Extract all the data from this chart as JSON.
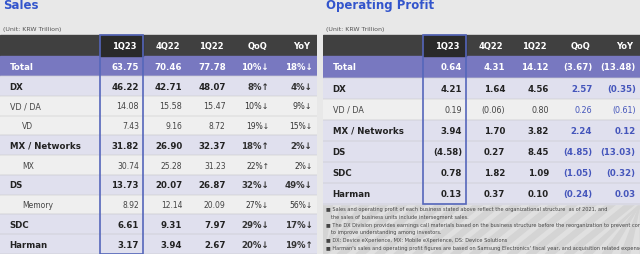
{
  "sales_title": "Sales",
  "op_title": "Operating Profit",
  "unit_label": "(Unit: KRW Trillion)",
  "columns": [
    "1Q23",
    "4Q22",
    "1Q22",
    "QoQ",
    "YoY"
  ],
  "sales_rows": [
    {
      "label": "Total",
      "vals": [
        "63.75",
        "70.46",
        "77.78",
        "10%↓",
        "18%↓"
      ],
      "bold": true,
      "header": true,
      "indent": false
    },
    {
      "label": "DX",
      "vals": [
        "46.22",
        "42.71",
        "48.07",
        "8%↑",
        "4%↓"
      ],
      "bold": true,
      "header": false,
      "indent": false
    },
    {
      "label": "VD / DA",
      "vals": [
        "14.08",
        "15.58",
        "15.47",
        "10%↓",
        "9%↓"
      ],
      "bold": false,
      "header": false,
      "indent": false
    },
    {
      "label": "VD",
      "vals": [
        "7.43",
        "9.16",
        "8.72",
        "19%↓",
        "15%↓"
      ],
      "bold": false,
      "header": false,
      "indent": true
    },
    {
      "label": "MX / Networks",
      "vals": [
        "31.82",
        "26.90",
        "32.37",
        "18%↑",
        "2%↓"
      ],
      "bold": true,
      "header": false,
      "indent": false
    },
    {
      "label": "MX",
      "vals": [
        "30.74",
        "25.28",
        "31.23",
        "22%↑",
        "2%↓"
      ],
      "bold": false,
      "header": false,
      "indent": true
    },
    {
      "label": "DS",
      "vals": [
        "13.73",
        "20.07",
        "26.87",
        "32%↓",
        "49%↓"
      ],
      "bold": true,
      "header": false,
      "indent": false
    },
    {
      "label": "Memory",
      "vals": [
        "8.92",
        "12.14",
        "20.09",
        "27%↓",
        "56%↓"
      ],
      "bold": false,
      "header": false,
      "indent": true
    },
    {
      "label": "SDC",
      "vals": [
        "6.61",
        "9.31",
        "7.97",
        "29%↓",
        "17%↓"
      ],
      "bold": true,
      "header": false,
      "indent": false
    },
    {
      "label": "Harman",
      "vals": [
        "3.17",
        "3.94",
        "2.67",
        "20%↓",
        "19%↑"
      ],
      "bold": true,
      "header": false,
      "indent": false
    }
  ],
  "op_rows": [
    {
      "label": "Total",
      "vals": [
        "0.64",
        "4.31",
        "14.12",
        "(3.67)",
        "(13.48)"
      ],
      "bold": true,
      "header": true,
      "indent": false
    },
    {
      "label": "DX",
      "vals": [
        "4.21",
        "1.64",
        "4.56",
        "2.57",
        "(0.35)"
      ],
      "bold": true,
      "header": false,
      "indent": false
    },
    {
      "label": "VD / DA",
      "vals": [
        "0.19",
        "(0.06)",
        "0.80",
        "0.26",
        "(0.61)"
      ],
      "bold": false,
      "header": false,
      "indent": false
    },
    {
      "label": "MX / Networks",
      "vals": [
        "3.94",
        "1.70",
        "3.82",
        "2.24",
        "0.12"
      ],
      "bold": true,
      "header": false,
      "indent": false
    },
    {
      "label": "DS",
      "vals": [
        "(4.58)",
        "0.27",
        "8.45",
        "(4.85)",
        "(13.03)"
      ],
      "bold": true,
      "header": false,
      "indent": false
    },
    {
      "label": "SDC",
      "vals": [
        "0.78",
        "1.82",
        "1.09",
        "(1.05)",
        "(0.32)"
      ],
      "bold": true,
      "header": false,
      "indent": false
    },
    {
      "label": "Harman",
      "vals": [
        "0.13",
        "0.37",
        "0.10",
        "(0.24)",
        "0.03"
      ],
      "bold": true,
      "header": false,
      "indent": false
    }
  ],
  "footnotes": [
    "■ Sales and operating profit of each business stated above reflect the organizational structure  as of 2021, and",
    "   the sales of business units include intersegment sales.",
    "■ The DX Division provides earnings call materials based on the business structure before the reorganization to prevent confusion and",
    "   to improve understanding among investors.",
    "■ DX: Device eXperience, MX: Mobile eXperience, DS: Device Solutions",
    "■ Harman's sales and operating profit figures are based on Samsung Electronics' fiscal year, and acquisition related expenses  are reflected."
  ],
  "col_header_bg": "#404040",
  "col_header_fg": "#ffffff",
  "total_row_bg": "#7878c0",
  "total_row_fg": "#ffffff",
  "bold_row_bg": "#e0e0ee",
  "normal_row_bg": "#efefef",
  "highlight_col_border": "#5566bb",
  "highlight_col_bg": "#2a2a2a",
  "title_color": "#3355cc",
  "neg_color": "#4455bb",
  "pos_qoq_color": "#3355bb",
  "bg_color": "#e8e8e8",
  "stripe_bg": "#dcdcdc",
  "sep_color": "#bbbbbb"
}
